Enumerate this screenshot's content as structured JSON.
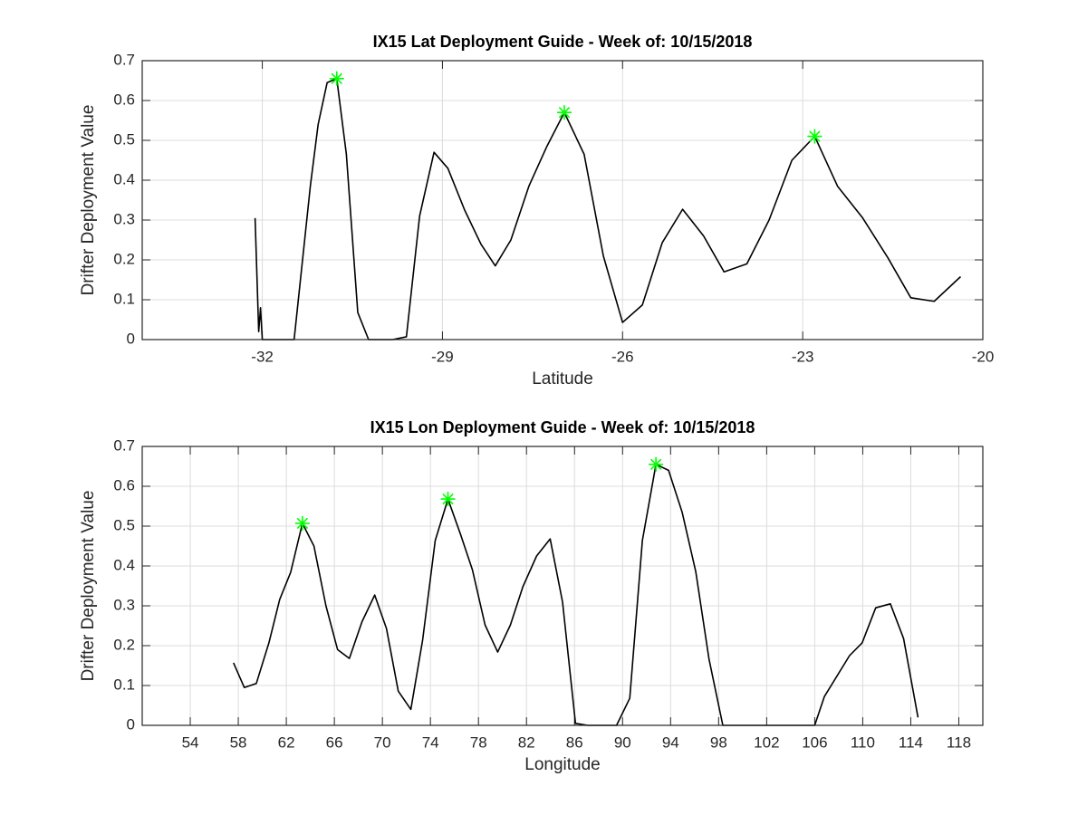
{
  "chart_data": [
    {
      "type": "line",
      "title": "IX15 Lat Deployment Guide - Week of: 10/15/2018",
      "xlabel": "Latitude",
      "ylabel": "Drifter Deployment Value",
      "xlim": [
        -34,
        -20
      ],
      "xticks": [
        -32,
        -29,
        -26,
        -23,
        -20
      ],
      "ylim": [
        0,
        0.7
      ],
      "yticks": [
        0,
        0.1,
        0.2,
        0.3,
        0.4,
        0.5,
        0.6,
        0.7
      ],
      "grid": true,
      "series": [
        {
          "color": "#000000",
          "x": [
            -32.12,
            -32.06,
            -32.03,
            -32.0,
            -31.47,
            -31.2,
            -31.07,
            -30.92,
            -30.76,
            -30.6,
            -30.41,
            -30.23,
            -29.83,
            -29.6,
            -29.38,
            -29.14,
            -28.91,
            -28.63,
            -28.36,
            -28.12,
            -27.86,
            -27.56,
            -27.26,
            -26.97,
            -26.64,
            -26.32,
            -26.0,
            -25.67,
            -25.34,
            -25.0,
            -24.65,
            -24.31,
            -23.93,
            -23.56,
            -23.18,
            -22.8,
            -22.42,
            -22.0,
            -21.58,
            -21.2,
            -20.81,
            -20.37
          ],
          "values": [
            0.305,
            0.02,
            0.08,
            0,
            0,
            0.385,
            0.54,
            0.645,
            0.655,
            0.465,
            0.068,
            0,
            0,
            0.007,
            0.31,
            0.47,
            0.43,
            0.325,
            0.24,
            0.185,
            0.25,
            0.385,
            0.485,
            0.57,
            0.465,
            0.21,
            0.043,
            0.087,
            0.243,
            0.327,
            0.26,
            0.17,
            0.19,
            0.3,
            0.45,
            0.51,
            0.385,
            0.305,
            0.205,
            0.105,
            0.096,
            0.158
          ]
        },
        {
          "color": "#00ff00",
          "marker": "*",
          "x": [
            -30.76,
            -26.97,
            -22.8
          ],
          "values": [
            0.655,
            0.57,
            0.51
          ]
        }
      ]
    },
    {
      "type": "line",
      "title": "IX15 Lon Deployment Guide - Week of: 10/15/2018",
      "xlabel": "Longitude",
      "ylabel": "Drifter Deployment Value",
      "xlim": [
        50,
        120
      ],
      "xticks": [
        54,
        58,
        62,
        66,
        70,
        74,
        78,
        82,
        86,
        90,
        94,
        98,
        102,
        106,
        110,
        114,
        118
      ],
      "ylim": [
        0,
        0.7
      ],
      "yticks": [
        0,
        0.1,
        0.2,
        0.3,
        0.4,
        0.5,
        0.6,
        0.7
      ],
      "grid": true,
      "series": [
        {
          "color": "#000000",
          "x": [
            57.6,
            58.5,
            59.5,
            60.55,
            61.45,
            62.36,
            63.34,
            64.3,
            65.3,
            66.27,
            67.25,
            68.3,
            69.36,
            70.34,
            71.32,
            72.37,
            73.35,
            74.4,
            75.46,
            76.5,
            77.5,
            78.55,
            79.6,
            80.66,
            81.7,
            82.84,
            83.97,
            85.0,
            86.08,
            87.1,
            89.5,
            90.6,
            91.65,
            92.78,
            93.83,
            94.96,
            96.1,
            97.2,
            98.35,
            100.8,
            106.0,
            106.8,
            108.9,
            109.95,
            111.08,
            112.3,
            113.4,
            114.6
          ],
          "values": [
            0.157,
            0.095,
            0.105,
            0.207,
            0.316,
            0.384,
            0.507,
            0.45,
            0.3,
            0.19,
            0.168,
            0.26,
            0.327,
            0.243,
            0.086,
            0.04,
            0.214,
            0.464,
            0.568,
            0.48,
            0.39,
            0.252,
            0.184,
            0.252,
            0.348,
            0.425,
            0.468,
            0.31,
            0.005,
            0,
            0,
            0.068,
            0.464,
            0.655,
            0.64,
            0.535,
            0.385,
            0.166,
            0,
            0,
            0,
            0.072,
            0.175,
            0.207,
            0.295,
            0.305,
            0.218,
            0.02
          ]
        },
        {
          "color": "#00ff00",
          "marker": "*",
          "x": [
            63.34,
            75.46,
            92.78
          ],
          "values": [
            0.507,
            0.568,
            0.655
          ]
        }
      ]
    }
  ]
}
